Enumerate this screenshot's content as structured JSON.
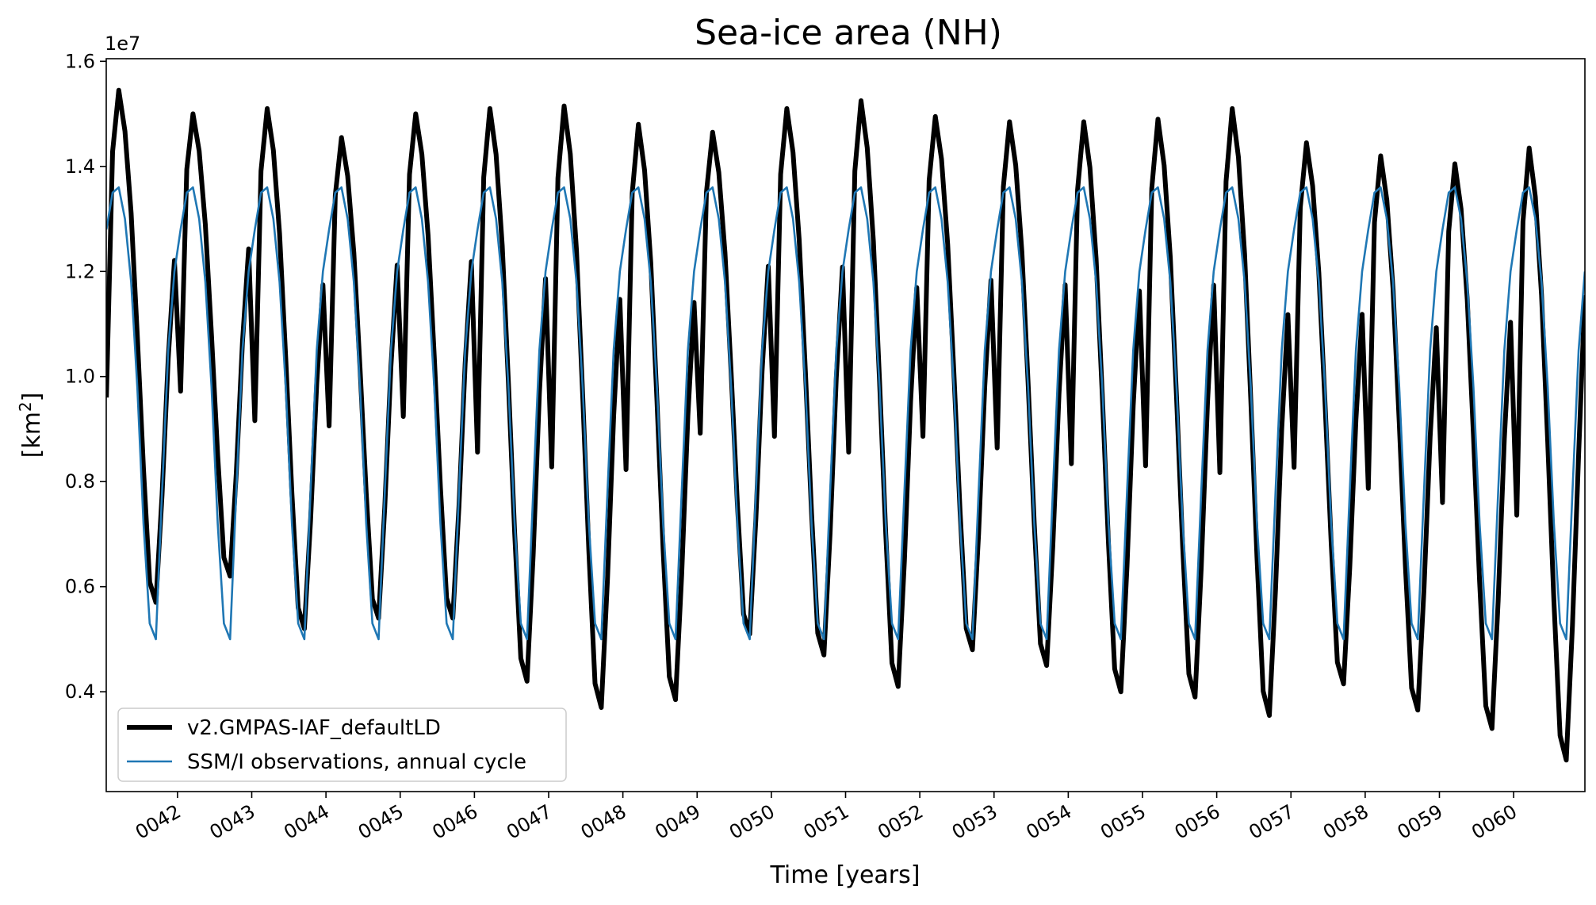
{
  "chart_data": {
    "type": "line",
    "title": "Sea-ice area (NH)",
    "xlabel": "Time [years]",
    "ylabel_base": "[km",
    "ylabel_sup": "2",
    "ylabel_end": "]",
    "y_offset_label": "1e7",
    "ylim": [
      0.21,
      1.605
    ],
    "y_ticks": [
      0.4,
      0.6,
      0.8,
      1.0,
      1.2,
      1.4,
      1.6
    ],
    "y_tick_labels": [
      "0.4",
      "0.6",
      "0.8",
      "1.0",
      "1.2",
      "1.4",
      "1.6"
    ],
    "xlim": [
      41.04,
      60.96
    ],
    "x_ticks": [
      42,
      43,
      44,
      45,
      46,
      47,
      48,
      49,
      50,
      51,
      52,
      53,
      54,
      55,
      56,
      57,
      58,
      59,
      60
    ],
    "x_tick_labels": [
      "0042",
      "0043",
      "0044",
      "0045",
      "0046",
      "0047",
      "0048",
      "0049",
      "0050",
      "0051",
      "0052",
      "0053",
      "0054",
      "0055",
      "0056",
      "0057",
      "0058",
      "0059",
      "0060"
    ],
    "x_start_year": 41.042,
    "x_step_years": 0.0833333,
    "legend_position": "lower-left",
    "series": [
      {
        "name": "v2.GMPAS-IAF_defaultLD",
        "color": "#000000",
        "annual_max": [
          1.545,
          1.5,
          1.51,
          1.455,
          1.5,
          1.51,
          1.515,
          1.48,
          1.465,
          1.51,
          1.525,
          1.495,
          1.485,
          1.485,
          1.49,
          1.51,
          1.445,
          1.42,
          1.405,
          1.435
        ],
        "annual_min": [
          0.57,
          0.62,
          0.52,
          0.54,
          0.54,
          0.42,
          0.37,
          0.385,
          0.51,
          0.47,
          0.41,
          0.48,
          0.45,
          0.4,
          0.39,
          0.355,
          0.415,
          0.365,
          0.33,
          0.27
        ],
        "final_value": 1.155
      },
      {
        "name": "SSM/I observations, annual cycle",
        "color": "#1f77b4",
        "monthly_cycle": [
          1.28,
          1.35,
          1.36,
          1.3,
          1.18,
          0.98,
          0.72,
          0.53,
          0.5,
          0.78,
          1.05,
          1.2
        ]
      }
    ]
  }
}
